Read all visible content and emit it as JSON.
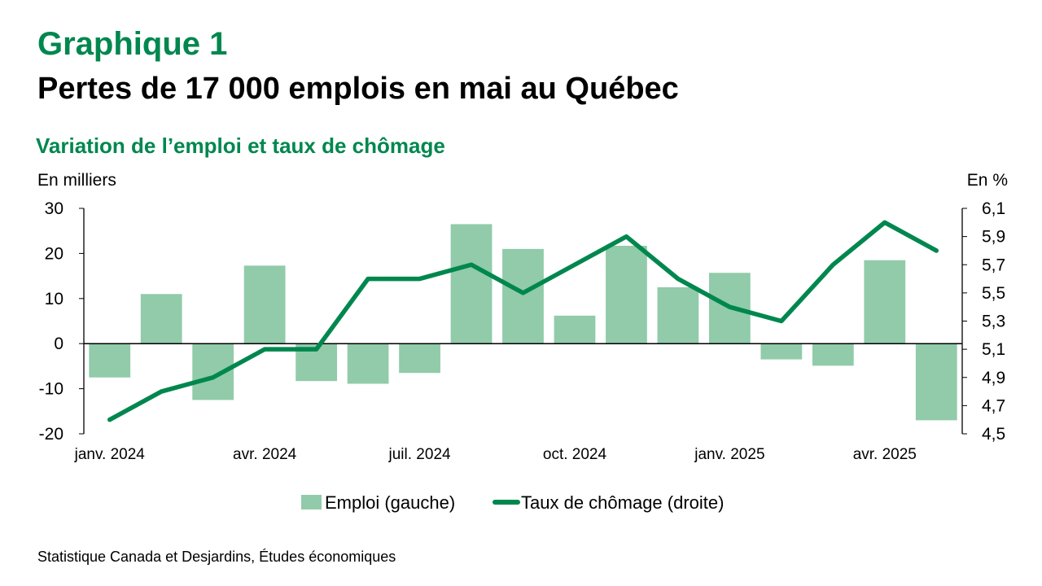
{
  "header": {
    "title": "Graphique 1",
    "subtitle": "Pertes de 17 000 emplois en mai au Québec"
  },
  "chart_data": {
    "type": "bar",
    "title": "Variation de l’emploi et taux de chômage",
    "y_left_label": "En milliers",
    "y_right_label": "En %",
    "ylim_left": [
      -20,
      30
    ],
    "yticks_left": [
      "30",
      "20",
      "10",
      "0",
      "-10",
      "-20"
    ],
    "ylim_right": [
      4.5,
      6.1
    ],
    "yticks_right": [
      "6,1",
      "5,9",
      "5,7",
      "5,5",
      "5,3",
      "5,1",
      "4,9",
      "4,7",
      "4,5"
    ],
    "x_ticks": [
      {
        "index": 0,
        "label": "janv. 2024"
      },
      {
        "index": 3,
        "label": "avr. 2024"
      },
      {
        "index": 6,
        "label": "juil. 2024"
      },
      {
        "index": 9,
        "label": "oct. 2024"
      },
      {
        "index": 12,
        "label": "janv. 2025"
      },
      {
        "index": 15,
        "label": "avr. 2025"
      }
    ],
    "series": [
      {
        "name": "Emploi (gauche)",
        "type": "bar",
        "axis": "left",
        "color": "#91CBAA",
        "values": [
          -7.5,
          11,
          -12.5,
          17.3,
          -8.3,
          -8.9,
          -6.5,
          26.5,
          21,
          6.2,
          21.7,
          12.5,
          15.7,
          -3.5,
          -4.9,
          18.5,
          -17
        ]
      },
      {
        "name": "Taux de chômage (droite)",
        "type": "line",
        "axis": "right",
        "color": "#00874E",
        "values": [
          4.6,
          4.8,
          4.9,
          5.1,
          5.1,
          5.6,
          5.6,
          5.7,
          5.5,
          5.7,
          5.9,
          5.6,
          5.4,
          5.3,
          5.7,
          6.0,
          5.8
        ]
      }
    ],
    "legend_position": "bottom",
    "grid": false
  },
  "footer": {
    "source": "Statistique Canada et Desjardins, Études économiques"
  }
}
